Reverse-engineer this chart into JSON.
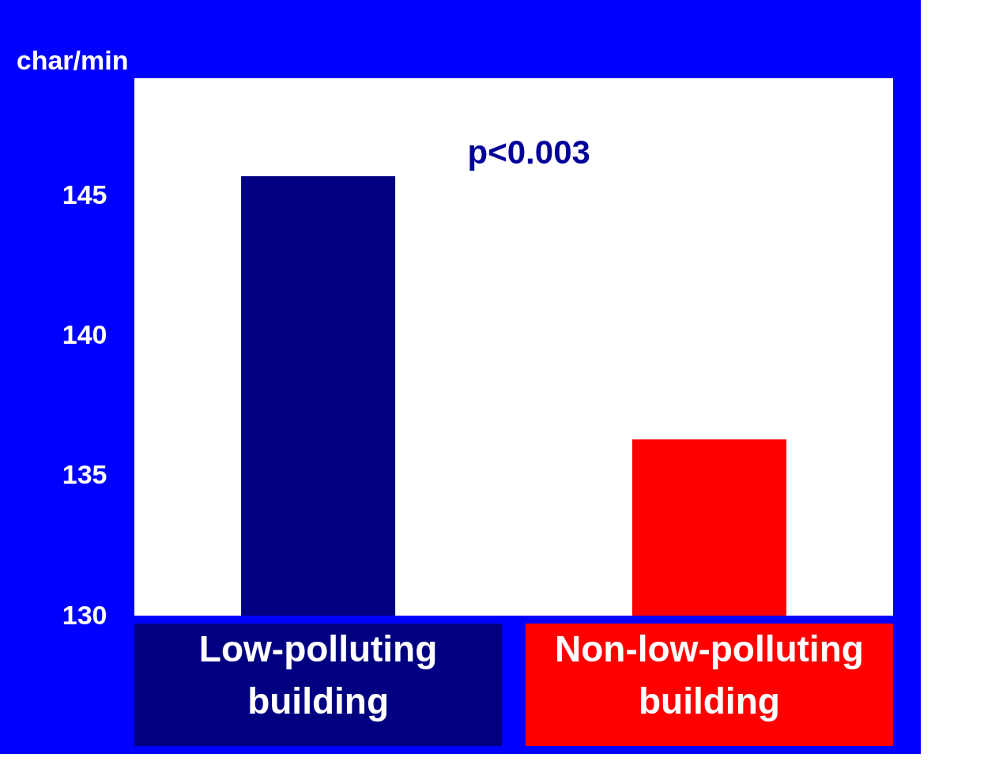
{
  "chart_data": {
    "type": "bar",
    "ylabel": "char/min",
    "categories": [
      "Low-polluting\nbuilding",
      "Non-low-polluting\nbuilding"
    ],
    "values": [
      145.7,
      136.3
    ],
    "colors": [
      "#000080",
      "#ff0000"
    ],
    "ylim": [
      130,
      149.2
    ],
    "yticks": [
      130,
      135,
      140,
      145
    ],
    "grid": false,
    "annotations": [
      "p<0.003"
    ]
  }
}
